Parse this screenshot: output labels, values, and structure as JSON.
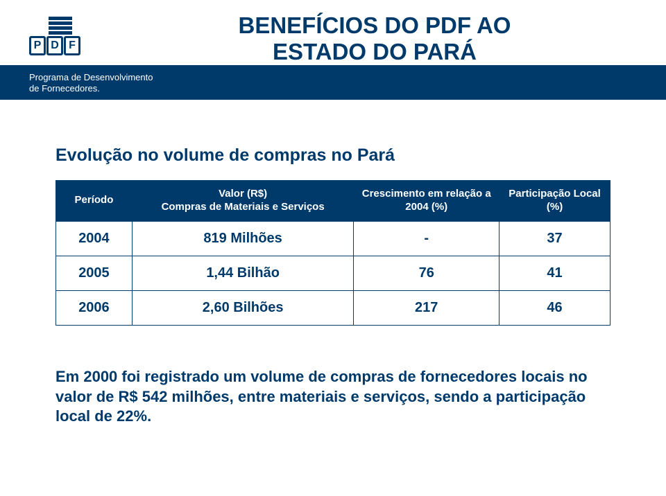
{
  "logo": {
    "letters": [
      "P",
      "D",
      "F"
    ],
    "tagline_line1": "Programa de Desenvolvimento",
    "tagline_line2": "de Fornecedores."
  },
  "title": {
    "line1": "BENEFÍCIOS DO PDF AO",
    "line2": "ESTADO DO PARÁ"
  },
  "subtitle": "Evolução no volume de compras no Pará",
  "table": {
    "headers": {
      "periodo": "Período",
      "valor": "Valor (R$)\nCompras de Materiais e Serviços",
      "crescimento": "Crescimento em relação a 2004 (%)",
      "participacao": "Participação Local (%)"
    },
    "header_bg": "#003a6b",
    "header_color": "#ffffff",
    "cell_color": "#003a6b",
    "border_color": "#003a6b",
    "rows": [
      {
        "periodo": "2004",
        "valor": "819 Milhões",
        "crescimento": "-",
        "participacao": "37"
      },
      {
        "periodo": "2005",
        "valor": "1,44 Bilhão",
        "crescimento": "76",
        "participacao": "41"
      },
      {
        "periodo": "2006",
        "valor": "2,60 Bilhões",
        "crescimento": "217",
        "participacao": "46"
      }
    ]
  },
  "footnote": "Em 2000 foi registrado um volume de compras de fornecedores locais no valor de R$ 542 milhões, entre materiais e serviços, sendo a participação local de 22%.",
  "colors": {
    "brand": "#003a6b",
    "background": "#ffffff"
  }
}
